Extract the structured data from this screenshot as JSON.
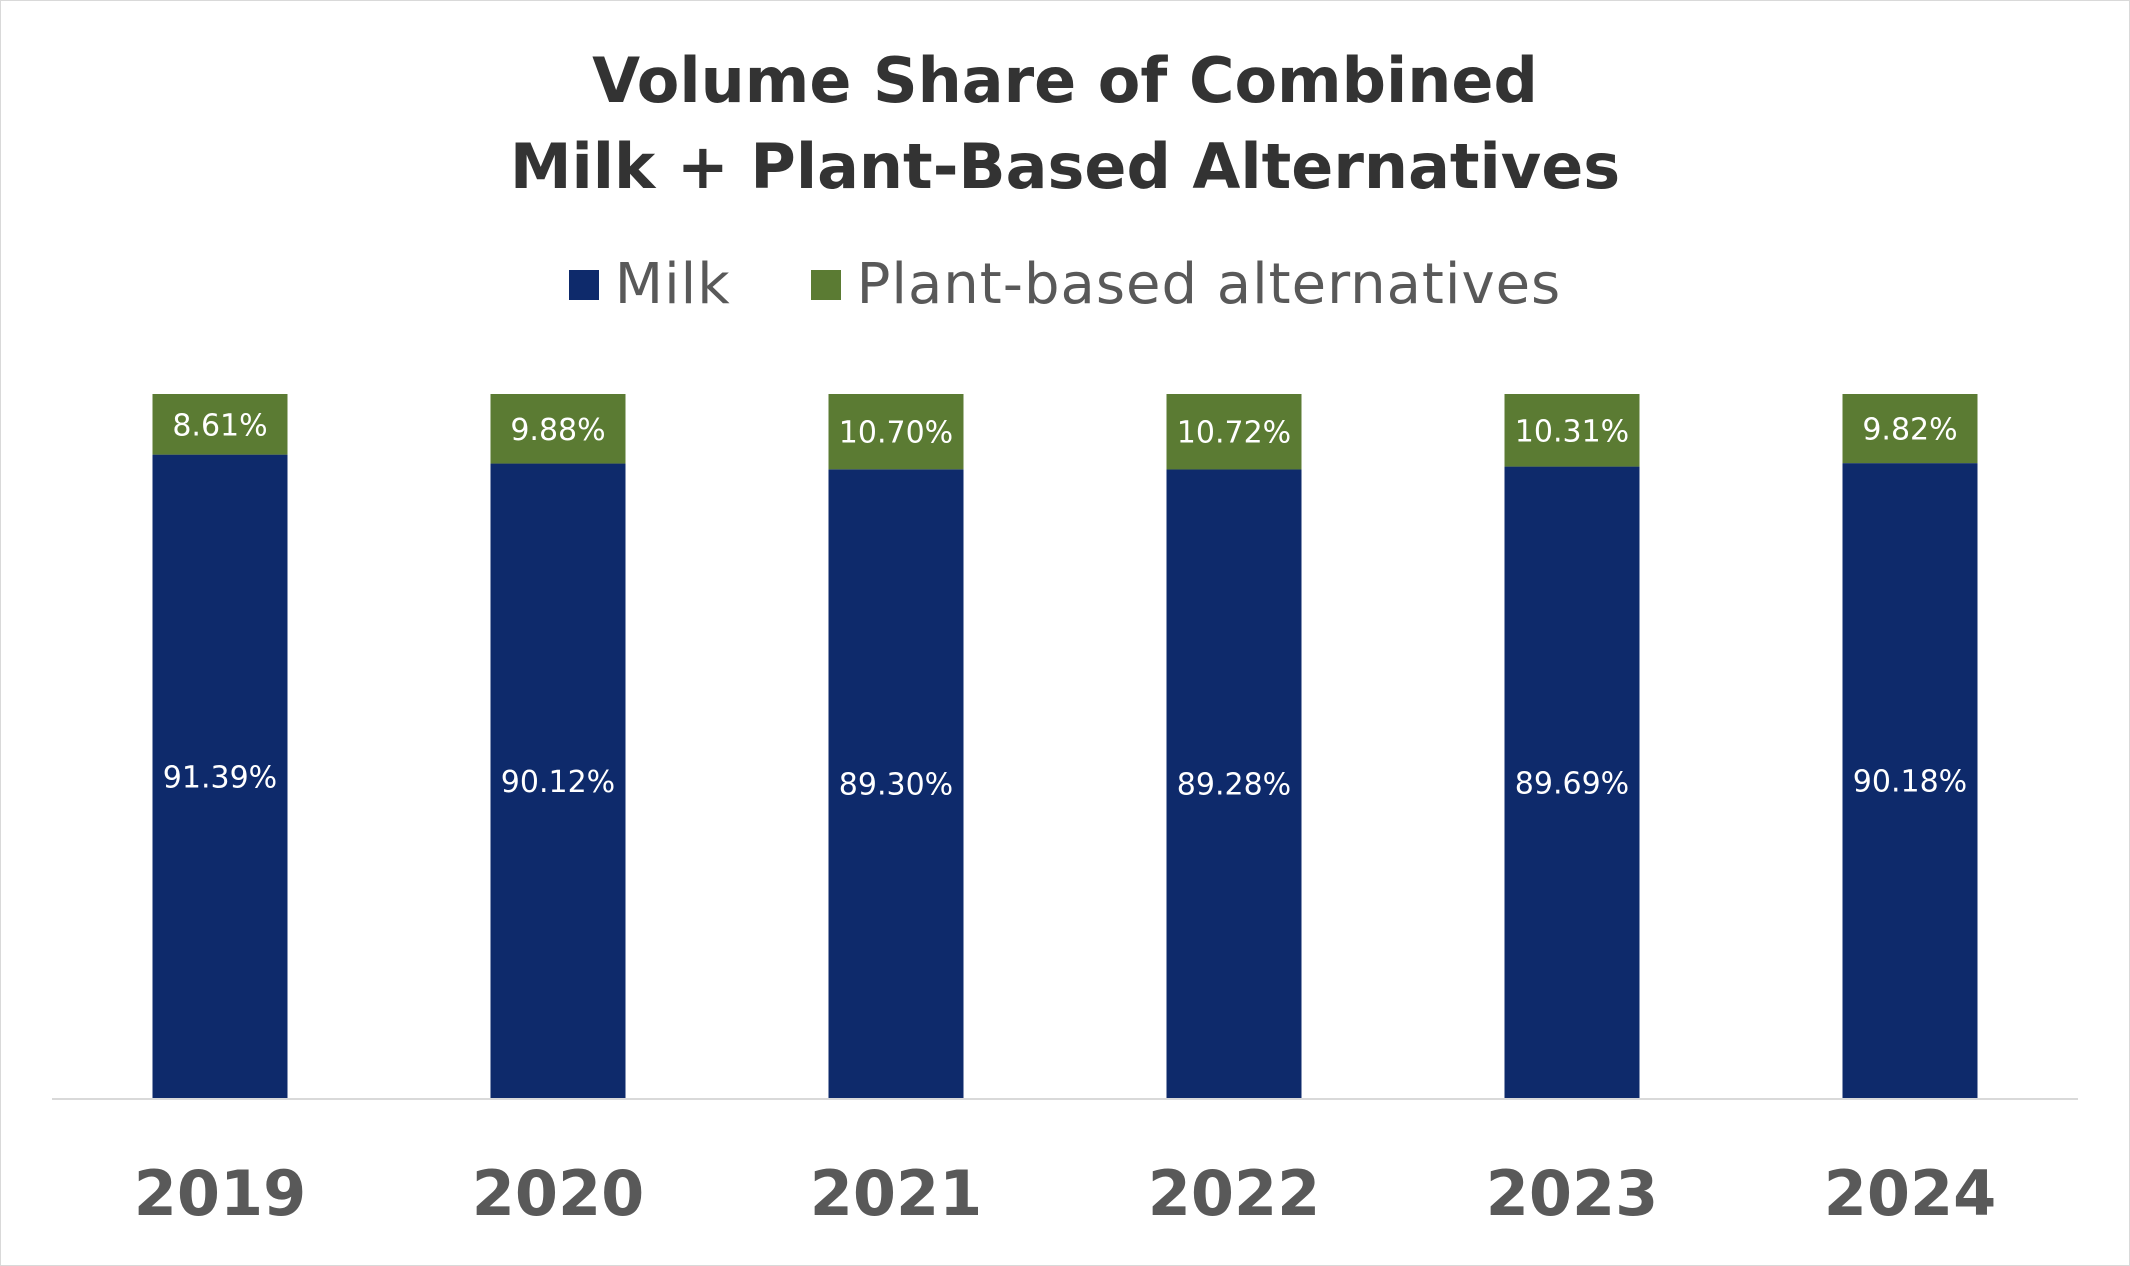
{
  "title_lines": [
    "Volume Share of Combined",
    "Milk + Plant-Based Alternatives"
  ],
  "legend": [
    {
      "label": "Milk",
      "color": "#0E2A6B"
    },
    {
      "label": "Plant-based alternatives",
      "color": "#5B7B33"
    }
  ],
  "chart_data": {
    "type": "bar",
    "stacked": true,
    "title": "Volume Share of Combined Milk + Plant-Based Alternatives",
    "xlabel": "",
    "ylabel": "",
    "ylim": [
      0,
      100
    ],
    "categories": [
      "2019",
      "2020",
      "2021",
      "2022",
      "2023",
      "2024"
    ],
    "series": [
      {
        "name": "Milk",
        "color": "#0E2A6B",
        "values": [
          91.39,
          90.12,
          89.3,
          89.28,
          89.69,
          90.18
        ],
        "labels": [
          "91.39%",
          "90.12%",
          "89.30%",
          "89.28%",
          "89.69%",
          "90.18%"
        ]
      },
      {
        "name": "Plant-based alternatives",
        "color": "#5B7B33",
        "values": [
          8.61,
          9.88,
          10.7,
          10.72,
          10.31,
          9.82
        ],
        "labels": [
          "8.61%",
          "9.88%",
          "10.70%",
          "10.72%",
          "10.31%",
          "9.82%"
        ]
      }
    ],
    "grid": false,
    "legend_position": "top-center"
  }
}
